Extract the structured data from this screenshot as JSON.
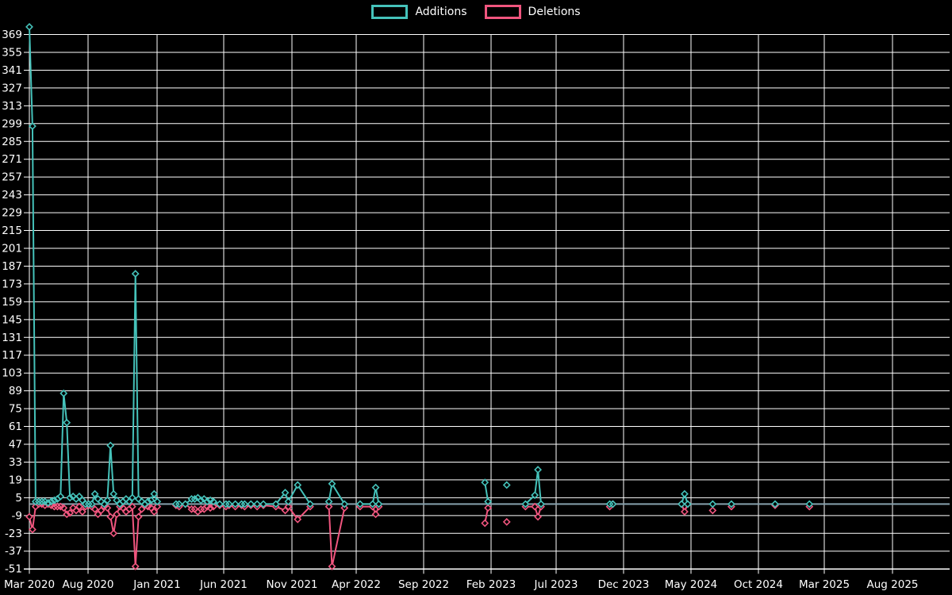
{
  "legend": {
    "items": [
      {
        "label": "Additions",
        "color": "#45c2ba"
      },
      {
        "label": "Deletions",
        "color": "#f0557e"
      }
    ]
  },
  "chart_data": {
    "type": "line",
    "title": "",
    "xlabel": "",
    "ylabel": "",
    "x_unit": "weeks, Mar 2020 through late 2025",
    "x_tick_labels": [
      "Mar 2020",
      "Aug 2020",
      "Jan 2021",
      "Jun 2021",
      "Nov 2021",
      "Apr 2022",
      "Sep 2022",
      "Feb 2023",
      "Jul 2023",
      "Dec 2023",
      "May 2024",
      "Oct 2024",
      "Mar 2025",
      "Aug 2025"
    ],
    "y_ticks": [
      -51,
      -37,
      -23,
      -9,
      5,
      19,
      33,
      47,
      61,
      75,
      89,
      103,
      117,
      131,
      145,
      159,
      173,
      187,
      201,
      215,
      229,
      243,
      257,
      271,
      285,
      299,
      313,
      327,
      341,
      355,
      369
    ],
    "ylim": [
      -51,
      376.5
    ],
    "grid": true,
    "legend_position": "top-center",
    "series_names": [
      "Additions",
      "Deletions"
    ],
    "weekly_points_format": "[weekIndex, additions, deletions]",
    "weekly_points": [
      [
        0,
        375,
        -10
      ],
      [
        1,
        297,
        -20
      ],
      [
        2,
        2,
        -2
      ],
      [
        3,
        2,
        0
      ],
      [
        4,
        2,
        0
      ],
      [
        5,
        2,
        -1
      ],
      [
        6,
        1,
        0
      ],
      [
        7,
        2,
        -1
      ],
      [
        8,
        3,
        -2
      ],
      [
        9,
        4,
        -2
      ],
      [
        10,
        6,
        -2
      ],
      [
        11,
        87,
        -3
      ],
      [
        12,
        64,
        -8
      ],
      [
        13,
        5,
        -7
      ],
      [
        14,
        6,
        -3
      ],
      [
        15,
        4,
        -5
      ],
      [
        16,
        6,
        -2
      ],
      [
        17,
        3,
        -6
      ],
      [
        18,
        0,
        -2
      ],
      [
        19,
        0,
        -1
      ],
      [
        20,
        0,
        -2
      ],
      [
        21,
        8,
        -4
      ],
      [
        22,
        4,
        -8
      ],
      [
        23,
        2,
        -5
      ],
      [
        24,
        0,
        -2
      ],
      [
        25,
        3,
        -3
      ],
      [
        26,
        46,
        -10
      ],
      [
        27,
        8,
        -23
      ],
      [
        28,
        3,
        -8
      ],
      [
        29,
        0,
        -2
      ],
      [
        30,
        2,
        -3
      ],
      [
        31,
        4,
        -6
      ],
      [
        32,
        2,
        -4
      ],
      [
        33,
        5,
        -2
      ],
      [
        34,
        181,
        -49
      ],
      [
        35,
        4,
        -10
      ],
      [
        36,
        2,
        -4
      ],
      [
        37,
        0,
        -1
      ],
      [
        38,
        2,
        -2
      ],
      [
        39,
        3,
        -3
      ],
      [
        40,
        8,
        -6
      ],
      [
        41,
        2,
        -2
      ],
      [
        47,
        0,
        -1
      ],
      [
        48,
        0,
        -2
      ],
      [
        50,
        0,
        0
      ],
      [
        52,
        4,
        -4
      ],
      [
        53,
        4,
        -4
      ],
      [
        54,
        5,
        -6
      ],
      [
        55,
        3,
        -4
      ],
      [
        56,
        4,
        -4
      ],
      [
        57,
        2,
        -2
      ],
      [
        58,
        3,
        -3
      ],
      [
        59,
        2,
        -2
      ],
      [
        61,
        0,
        -1
      ],
      [
        63,
        0,
        -2
      ],
      [
        64,
        0,
        -1
      ],
      [
        66,
        0,
        -2
      ],
      [
        68,
        0,
        -1
      ],
      [
        69,
        0,
        -2
      ],
      [
        71,
        0,
        -1
      ],
      [
        73,
        0,
        -2
      ],
      [
        75,
        0,
        -1
      ],
      [
        79,
        0,
        -2
      ],
      [
        82,
        9,
        -5
      ],
      [
        83,
        2,
        -2
      ],
      [
        86,
        15,
        -12
      ],
      [
        90,
        0,
        -2
      ],
      [
        96,
        2,
        -2
      ],
      [
        97,
        16,
        -49
      ],
      [
        101,
        0,
        -3
      ],
      [
        106,
        0,
        -2
      ],
      [
        110,
        0,
        -2
      ],
      [
        111,
        13,
        -8
      ],
      [
        112,
        0,
        -2
      ],
      [
        146,
        17,
        -15
      ],
      [
        147,
        2,
        -3
      ],
      [
        153,
        15,
        -14
      ],
      [
        159,
        0,
        -2
      ],
      [
        162,
        7,
        -2
      ],
      [
        163,
        27,
        -10
      ],
      [
        164,
        0,
        -2
      ],
      [
        186,
        0,
        -2
      ],
      [
        187,
        0,
        0
      ],
      [
        209,
        0,
        0
      ],
      [
        210,
        8,
        -6
      ],
      [
        211,
        0,
        0
      ],
      [
        219,
        0,
        -5
      ],
      [
        225,
        0,
        -2
      ],
      [
        239,
        0,
        -1
      ],
      [
        250,
        0,
        -2
      ]
    ],
    "colors": {
      "additions": "#45c2ba",
      "deletions": "#f0557e",
      "zero_line": "#87a0ac",
      "grid": "#ffffff",
      "text": "#ffffff",
      "background": "#000000"
    }
  }
}
